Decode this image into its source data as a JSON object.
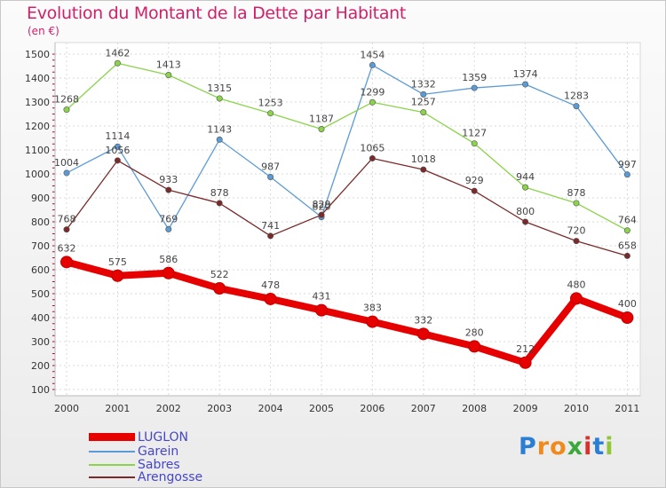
{
  "header": {
    "title": "Evolution du Montant de la Dette par Habitant",
    "subtitle": "(en €)"
  },
  "logo": {
    "letters": [
      "P",
      "r",
      "o",
      "x",
      "i",
      "t",
      "i"
    ],
    "colors": [
      "#2a7fd4",
      "#f08a1c",
      "#f08a1c",
      "#3aa83a",
      "#d4342c",
      "#2a7fd4",
      "#8fc63c"
    ]
  },
  "chart_data": {
    "type": "line",
    "categories": [
      "2000",
      "2001",
      "2002",
      "2003",
      "2004",
      "2005",
      "2006",
      "2007",
      "2008",
      "2009",
      "2010",
      "2011"
    ],
    "ylim": [
      100,
      1500
    ],
    "yticks": [
      "100",
      "200",
      "300",
      "400",
      "500",
      "600",
      "700",
      "800",
      "900",
      "1000",
      "1100",
      "1200",
      "1300",
      "1400",
      "1500"
    ],
    "grid": true,
    "legend_position": "bottom-left",
    "series": [
      {
        "name": "LUGLON",
        "color": "#e60000",
        "values": [
          632,
          575,
          586,
          522,
          478,
          431,
          383,
          332,
          280,
          212,
          480,
          400
        ],
        "labels": [
          "632",
          "575",
          "586",
          "522",
          "478",
          "431",
          "383",
          "332",
          "280",
          "212",
          "480",
          "400"
        ]
      },
      {
        "name": "Garein",
        "color": "#5b9bd5",
        "values": [
          1004,
          1114,
          769,
          1143,
          987,
          820,
          1454,
          1332,
          1359,
          1374,
          1283,
          997
        ],
        "labels": [
          "1004",
          "1114",
          "769",
          "1143",
          "987",
          "820",
          "1454",
          "1332",
          "1359",
          "1374",
          "1283",
          "997"
        ]
      },
      {
        "name": "Sabres",
        "color": "#8ad34a",
        "values": [
          1268,
          1462,
          1413,
          1315,
          1253,
          1187,
          1299,
          1257,
          1127,
          944,
          878,
          764
        ],
        "labels": [
          "1268",
          "1462",
          "1413",
          "1315",
          "1253",
          "1187",
          "1299",
          "1257",
          "1127",
          "944",
          "878",
          "764"
        ]
      },
      {
        "name": "Arengosse",
        "color": "#7a2a2a",
        "values": [
          768,
          1056,
          933,
          878,
          741,
          829,
          1065,
          1018,
          929,
          800,
          720,
          658
        ],
        "labels": [
          "768",
          "1056",
          "933",
          "878",
          "741",
          "829",
          "1065",
          "1018",
          "929",
          "800",
          "720",
          "658"
        ]
      }
    ]
  }
}
